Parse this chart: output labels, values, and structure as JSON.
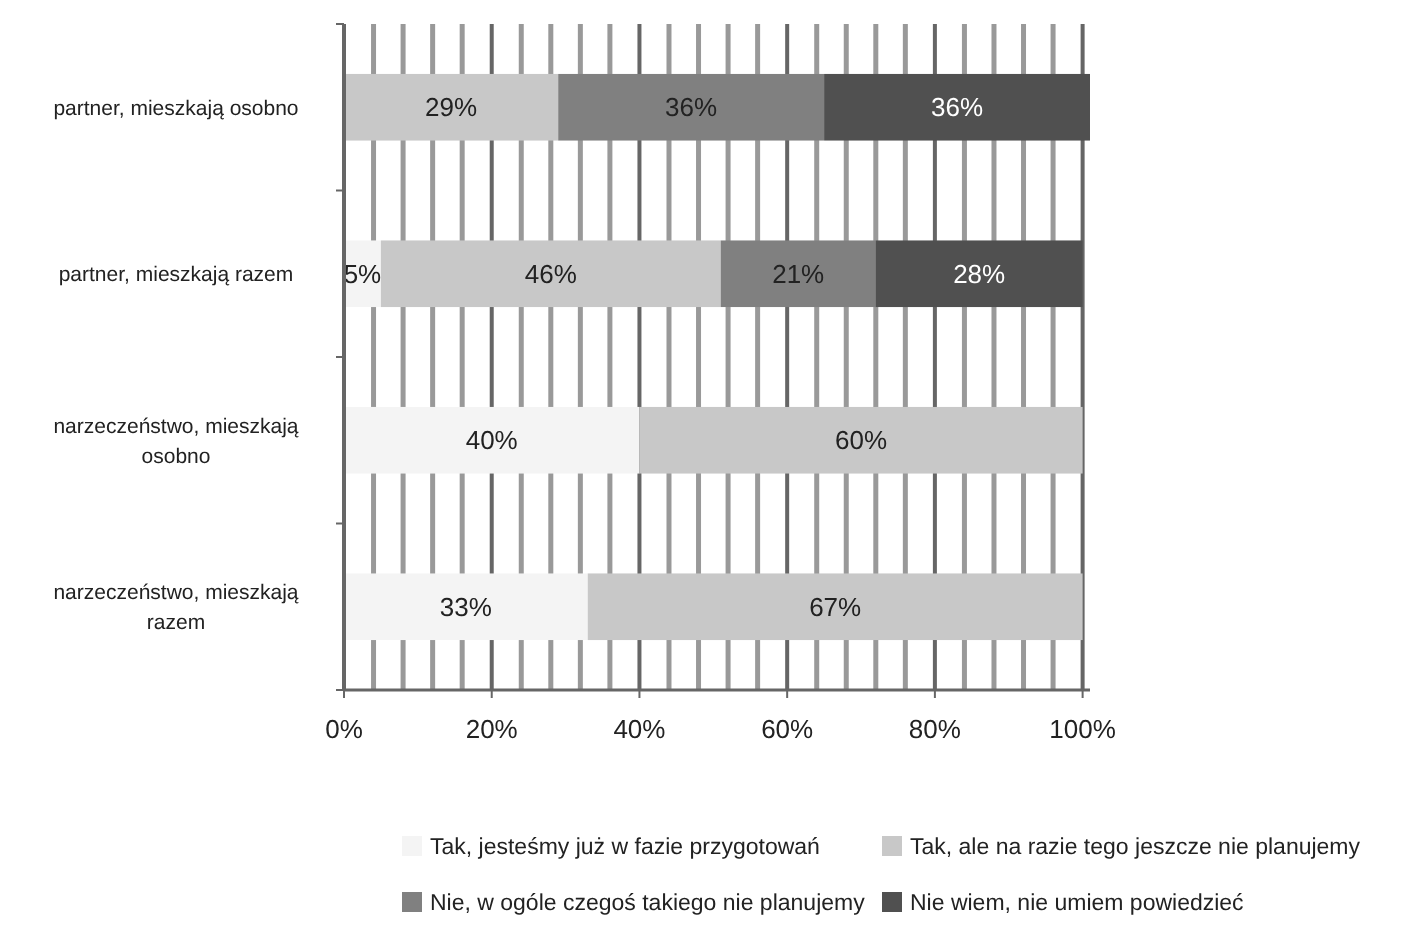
{
  "chart_data": {
    "type": "bar",
    "orientation": "horizontal",
    "stacked": true,
    "categories": [
      "partner, mieszkają osobno",
      "partner, mieszkają razem",
      "narzeczeństwo, mieszkają osobno",
      "narzeczeństwo, mieszkają razem"
    ],
    "series": [
      {
        "name": "Tak, jesteśmy już w fazie przygotowań",
        "color": "#f4f4f4",
        "values": [
          0,
          5,
          40,
          33
        ],
        "value_labels": [
          null,
          "5%",
          "40%",
          "33%"
        ]
      },
      {
        "name": "Tak, ale na razie tego jeszcze nie planujemy",
        "color": "#c8c8c8",
        "values": [
          29,
          46,
          60,
          67
        ],
        "value_labels": [
          "29%",
          "46%",
          "60%",
          "67%"
        ]
      },
      {
        "name": "Nie, w ogóle czegoś takiego nie planujemy",
        "color": "#808080",
        "values": [
          36,
          21,
          0,
          0
        ],
        "value_labels": [
          "36%",
          "21%",
          null,
          null
        ]
      },
      {
        "name": "Nie wiem, nie umiem powiedzieć",
        "color": "#505050",
        "values": [
          36,
          28,
          0,
          0
        ],
        "value_labels": [
          "36%",
          "28%",
          null,
          null
        ]
      }
    ],
    "xlim": [
      0,
      101
    ],
    "xticks": [
      {
        "value": 0,
        "label": "0%"
      },
      {
        "value": 4,
        "label": null
      },
      {
        "value": 8,
        "label": null
      },
      {
        "value": 12,
        "label": null
      },
      {
        "value": 16,
        "label": null
      },
      {
        "value": 20,
        "label": "20%"
      },
      {
        "value": 24,
        "label": null
      },
      {
        "value": 28,
        "label": null
      },
      {
        "value": 32,
        "label": null
      },
      {
        "value": 36,
        "label": null
      },
      {
        "value": 40,
        "label": "40%"
      },
      {
        "value": 44,
        "label": null
      },
      {
        "value": 48,
        "label": null
      },
      {
        "value": 52,
        "label": null
      },
      {
        "value": 56,
        "label": null
      },
      {
        "value": 60,
        "label": "60%"
      },
      {
        "value": 64,
        "label": null
      },
      {
        "value": 68,
        "label": null
      },
      {
        "value": 72,
        "label": null
      },
      {
        "value": 76,
        "label": null
      },
      {
        "value": 80,
        "label": "80%"
      },
      {
        "value": 84,
        "label": null
      },
      {
        "value": 88,
        "label": null
      },
      {
        "value": 92,
        "label": null
      },
      {
        "value": 96,
        "label": null
      },
      {
        "value": 100,
        "label": "100%"
      }
    ],
    "grid": "x",
    "legend": "bottom"
  }
}
